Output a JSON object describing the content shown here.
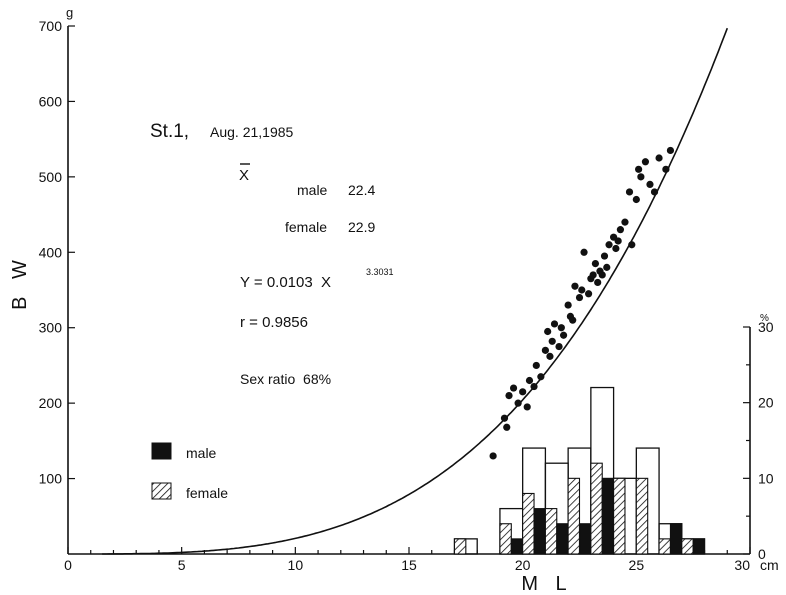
{
  "chart_data": {
    "type": "scatter",
    "title": "St.1,",
    "date": "Aug. 21,1985",
    "xlabel": "M L",
    "ylabel": "B W",
    "xlim": [
      0,
      30
    ],
    "ylim": [
      0,
      700
    ],
    "x_unit": "cm",
    "y_unit": "g",
    "x_ticks": [
      "0",
      "5",
      "10",
      "15",
      "20",
      "25",
      "30"
    ],
    "y_ticks": [
      "100",
      "200",
      "300",
      "400",
      "500",
      "600",
      "700"
    ],
    "y2_unit": "%",
    "y2lim": [
      0,
      30
    ],
    "y2_ticks": [
      "0",
      "10",
      "20",
      "30"
    ],
    "stats": {
      "mean_symbol": "X",
      "male_label": "male",
      "male_mean": "22.4",
      "female_label": "female",
      "female_mean": "22.9",
      "equation_lhs": "Y = 0.0103  X",
      "equation_exp": "3.3031",
      "r_text": "r = 0.9856",
      "sex_ratio_text": "Sex ratio  68%"
    },
    "curve": {
      "a": 0.0103,
      "b": 3.3031
    },
    "scatter": {
      "x": [
        18.7,
        19.2,
        19.3,
        19.4,
        19.6,
        19.8,
        20.0,
        20.2,
        20.3,
        20.5,
        20.6,
        20.8,
        21.0,
        21.1,
        21.2,
        21.3,
        21.4,
        21.6,
        21.7,
        21.8,
        22.0,
        22.1,
        22.2,
        22.3,
        22.5,
        22.6,
        22.7,
        22.9,
        23.0,
        23.1,
        23.2,
        23.3,
        23.4,
        23.5,
        23.6,
        23.7,
        23.8,
        24.0,
        24.1,
        24.2,
        24.3,
        24.5,
        24.7,
        24.8,
        25.0,
        25.1,
        25.2,
        25.4,
        25.6,
        25.8,
        26.0,
        26.3,
        26.5
      ],
      "y": [
        130,
        180,
        168,
        210,
        220,
        200,
        215,
        195,
        230,
        222,
        250,
        235,
        270,
        295,
        262,
        282,
        305,
        275,
        300,
        290,
        330,
        315,
        310,
        355,
        340,
        350,
        400,
        345,
        365,
        370,
        385,
        360,
        375,
        370,
        395,
        380,
        410,
        420,
        405,
        415,
        430,
        440,
        480,
        410,
        470,
        510,
        500,
        520,
        490,
        480,
        525,
        510,
        535
      ],
      "marker": "filled-circle"
    },
    "histogram": {
      "bin_start": [
        17,
        19,
        20,
        21,
        22,
        23,
        24,
        25,
        26,
        27
      ],
      "bin_width": 1,
      "total": [
        2,
        6,
        14,
        12,
        14,
        22,
        10,
        14,
        4,
        2
      ],
      "male": [
        0,
        2,
        6,
        4,
        4,
        10,
        0,
        0,
        4,
        2
      ],
      "female": [
        2,
        4,
        8,
        6,
        10,
        12,
        10,
        10,
        2,
        2
      ]
    },
    "legend": [
      {
        "name": "male",
        "fill": "solid-black"
      },
      {
        "name": "female",
        "fill": "hatched"
      }
    ],
    "grid": false,
    "legend_position": "left-lower"
  }
}
